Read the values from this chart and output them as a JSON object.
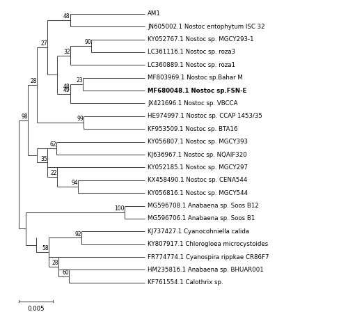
{
  "title": "",
  "scale_bar_label": "0.005",
  "taxa": [
    "AM1",
    "JN605002.1 Nostoc entophytum ISC 32",
    "KY052767.1 Nostoc sp. MGCY293-1",
    "LC361116.1 Nostoc sp. roza3",
    "LC360889.1 Nostoc sp. roza1",
    "MF803969.1 Nostoc sp.Bahar M",
    "MF680048.1 Nostoc sp.FSN-E",
    "JX421696.1 Nostoc sp. VBCCA",
    "HE974997.1 Nostoc sp. CCAP 1453/35",
    "KF953509.1 Nostoc sp. BTA16",
    "KY056807.1 Nostoc sp. MGCY393",
    "KJ636967.1 Nostoc sp. NQAIF320",
    "KY052185.1 Nostoc sp. MGCY297",
    "KX458490.1 Nostoc sp. CENA544",
    "KY056816.1 Nostoc sp. MGCY544",
    "MG596708.1 Anabaena sp. Soos B12",
    "MG596706.1 Anabaena sp. Soos B1",
    "KJ737427.1 Cyanocohniella calida",
    "KY807917.1 Chlorogloea microcystoides",
    "FR774774.1 Cyanospira rippkae CR86F7",
    "HM235816.1 Anabaena sp. BHUAR001",
    "KF761554.1 Calothrix sp."
  ],
  "bold_taxa": [
    6
  ],
  "line_color": "#444444",
  "text_color": "#000000",
  "bg_color": "#ffffff",
  "fontsize": 6.2,
  "bootstrap_fontsize": 5.5,
  "fig_width": 5.0,
  "fig_height": 4.48,
  "dpi": 100
}
